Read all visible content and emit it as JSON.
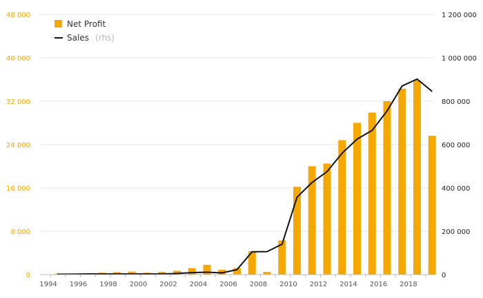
{
  "chart_data": {
    "type": "bar",
    "x": [
      1994,
      1995,
      1996,
      1997,
      1998,
      1999,
      2000,
      2001,
      2002,
      2003,
      2004,
      2005,
      2006,
      2007,
      2008,
      2009,
      2010,
      2011,
      2012,
      2013,
      2014,
      2015,
      2016,
      2017,
      2018,
      2019
    ],
    "x_tick_labels": [
      "1994",
      "1996",
      "1998",
      "2000",
      "2002",
      "2004",
      "2006",
      "2008",
      "2010",
      "2012",
      "2014",
      "2016",
      "2018"
    ],
    "series": [
      {
        "name": "Net Profit",
        "type": "bar",
        "axis": "left",
        "color": "#f5a800",
        "values": [
          100,
          200,
          150,
          350,
          450,
          550,
          350,
          500,
          700,
          1200,
          1800,
          900,
          1200,
          4300,
          500,
          6300,
          16200,
          20000,
          20500,
          24800,
          28000,
          29900,
          32000,
          34300,
          35800,
          25600
        ]
      },
      {
        "name": "Sales",
        "note": "(rhs)",
        "type": "line",
        "axis": "right",
        "color": "#111111",
        "values": [
          2000,
          2000,
          3000,
          3000,
          3000,
          3000,
          3000,
          3000,
          5000,
          9000,
          11000,
          8000,
          23000,
          105000,
          106000,
          140000,
          357000,
          425000,
          475000,
          560000,
          625000,
          665000,
          755000,
          870000,
          902000,
          845000
        ]
      }
    ],
    "y_left": {
      "ylim": [
        0,
        48000
      ],
      "ticks": [
        "0",
        "8 000",
        "16 000",
        "24 000",
        "32 000",
        "40 000",
        "48 000"
      ],
      "tick_values": [
        0,
        8000,
        16000,
        24000,
        32000,
        40000,
        48000
      ],
      "color": "#f5a800"
    },
    "y_right": {
      "ylim": [
        0,
        1200000
      ],
      "ticks": [
        "0",
        "200 000",
        "400 000",
        "600 000",
        "800 000",
        "1 000 000",
        "1 200 000"
      ],
      "tick_values": [
        0,
        200000,
        400000,
        600000,
        800000,
        1000000,
        1200000
      ],
      "color": "#222222"
    },
    "grid": true,
    "legend_position": "top-left"
  }
}
